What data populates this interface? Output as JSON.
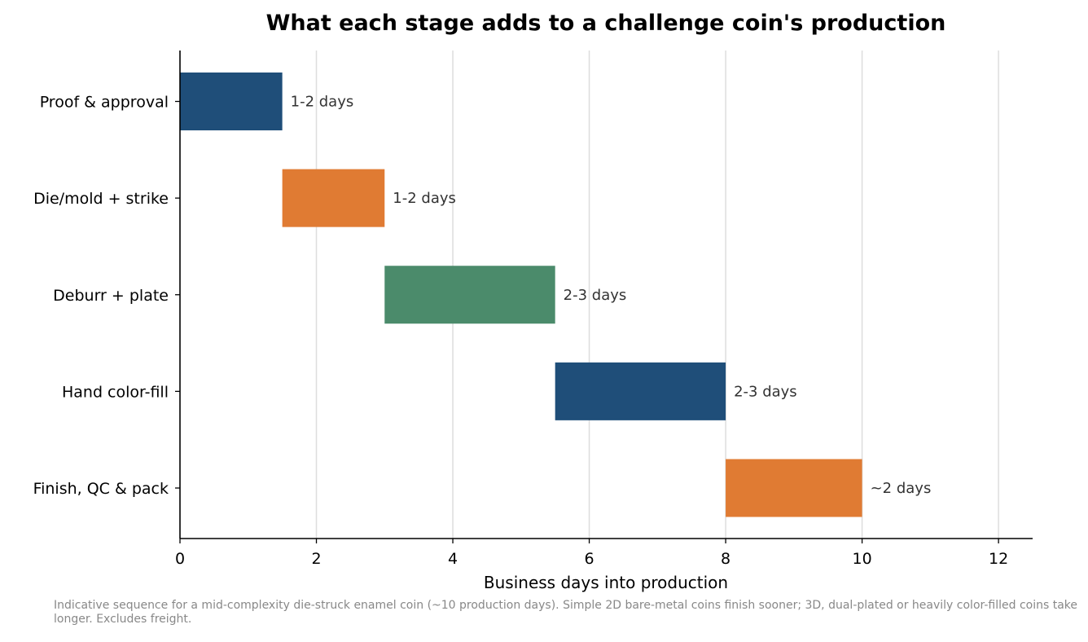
{
  "chart_data": {
    "type": "bar",
    "orientation": "horizontal",
    "title": "What each stage adds to a challenge coin's production",
    "xlabel": "Business days into production",
    "ylabel": "",
    "xlim": [
      0,
      12.5
    ],
    "xticks": [
      0,
      2,
      4,
      6,
      8,
      10,
      12
    ],
    "grid": {
      "x": true,
      "y": false
    },
    "stages": [
      {
        "name": "Proof & approval",
        "start": 0,
        "end": 1.5,
        "label": "1-2 days",
        "color": "#1f4e79"
      },
      {
        "name": "Die/mold + strike",
        "start": 1.5,
        "end": 3,
        "label": "1-2 days",
        "color": "#e07b33"
      },
      {
        "name": "Deburr + plate",
        "start": 3,
        "end": 5.5,
        "label": "2-3 days",
        "color": "#4b8b6b"
      },
      {
        "name": "Hand color-fill",
        "start": 5.5,
        "end": 8,
        "label": "2-3 days",
        "color": "#1f4e79"
      },
      {
        "name": "Finish, QC & pack",
        "start": 8,
        "end": 10,
        "label": "~2 days",
        "color": "#e07b33"
      }
    ]
  },
  "footnote": "Indicative sequence for a mid-complexity die-struck enamel coin (~10 production days). Simple 2D bare-metal coins finish sooner; 3D, dual-plated or heavily color-filled coins take longer. Excludes freight."
}
